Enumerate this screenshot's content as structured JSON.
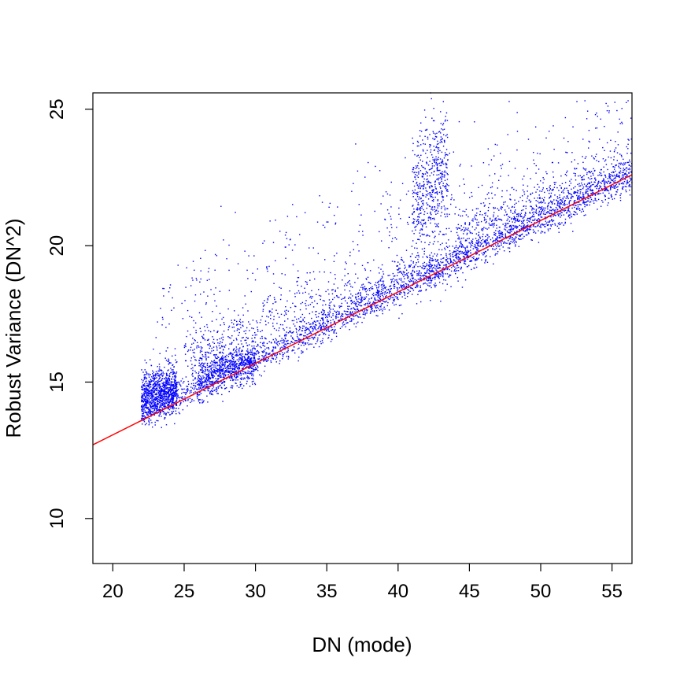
{
  "chart_data": {
    "type": "scatter",
    "title": "",
    "xlabel": "DN (mode)",
    "ylabel": "Robust Variance (DN^2)",
    "xlim": [
      18.6,
      56.4
    ],
    "ylim": [
      8.35,
      25.6
    ],
    "x_ticks": [
      20,
      25,
      30,
      35,
      40,
      45,
      50,
      55
    ],
    "y_ticks": [
      10,
      15,
      20,
      25
    ],
    "x_tick_labels": [
      "20",
      "25",
      "30",
      "35",
      "40",
      "45",
      "50",
      "55"
    ],
    "y_tick_labels": [
      "10",
      "15",
      "20",
      "25"
    ],
    "grid": false,
    "series": [
      {
        "kind": "points",
        "color": "#0000ff",
        "x_range": [
          22.0,
          56.4
        ],
        "clusters": [
          {
            "x": [
              22.0,
              24.5
            ],
            "y_center_at_x_start": 14.5,
            "y_center_at_x_end": 14.8,
            "spread": 0.9,
            "weight": 0.14
          },
          {
            "x": [
              26.0,
              30.0
            ],
            "y_center_at_x_start": 15.2,
            "y_center_at_x_end": 15.8,
            "spread": 0.8,
            "weight": 0.1
          },
          {
            "x": [
              22.0,
              56.4
            ],
            "y_center_at_x_start": 13.8,
            "y_center_at_x_end": 22.6,
            "spread": 0.6,
            "weight": 0.4
          },
          {
            "x": [
              25.0,
              45.0
            ],
            "y_center_at_x_start": 16.0,
            "y_center_at_x_end": 19.8,
            "spread": 1.1,
            "weight": 0.12
          },
          {
            "x": [
              41.0,
              43.5
            ],
            "y_center_at_x_start": 21.0,
            "y_center_at_x_end": 22.5,
            "spread": 2.2,
            "weight": 0.08
          },
          {
            "x": [
              44.0,
              56.4
            ],
            "y_center_at_x_start": 20.3,
            "y_center_at_x_end": 23.0,
            "spread": 1.0,
            "weight": 0.1
          },
          {
            "x": [
              23.0,
              56.4
            ],
            "y_center_at_x_start": 17.0,
            "y_center_at_x_end": 24.5,
            "spread": 2.0,
            "weight": 0.06
          }
        ]
      },
      {
        "kind": "fit-line",
        "color": "#ff0000",
        "x": [
          18.6,
          56.4
        ],
        "y": [
          12.7,
          22.6
        ]
      }
    ]
  }
}
